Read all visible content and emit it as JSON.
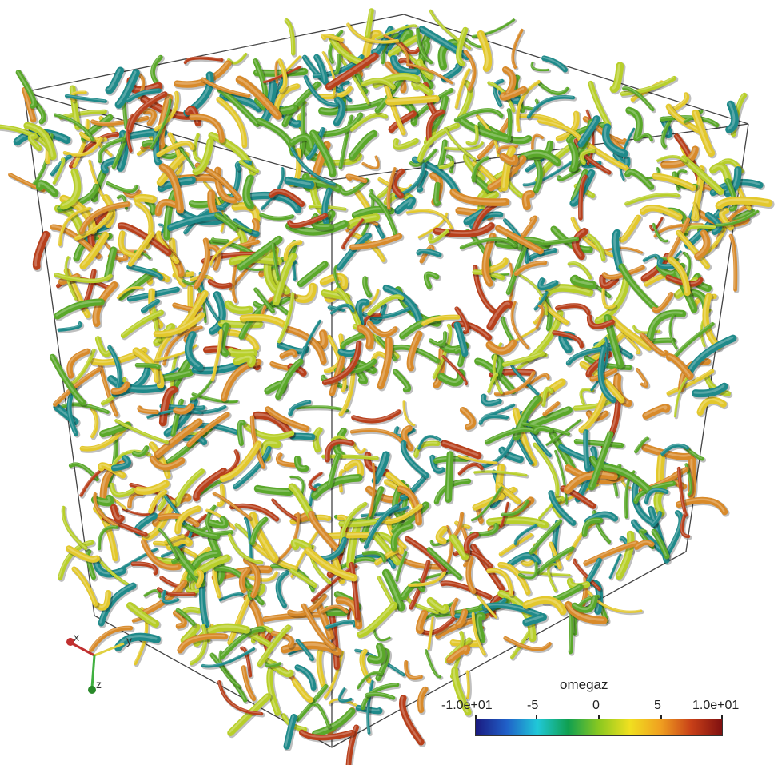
{
  "colorbar": {
    "title": "omegaz",
    "ticks": [
      "-1.0e+01",
      "-5",
      "0",
      "5",
      "1.0e+01"
    ],
    "colors": [
      "#1a1a80",
      "#2060c8",
      "#20c8d8",
      "#10a050",
      "#8ac820",
      "#f0e020",
      "#f0a020",
      "#c84018",
      "#801010"
    ]
  },
  "orientation_axes": {
    "x": "x",
    "y": "y",
    "z": "z"
  },
  "palette": {
    "teal": "#1f8a8a",
    "green": "#5aa82a",
    "lime": "#b8cf2a",
    "yellow": "#e3c82c",
    "orange": "#d88a2a",
    "red": "#b8401c",
    "frame": "#444444"
  }
}
